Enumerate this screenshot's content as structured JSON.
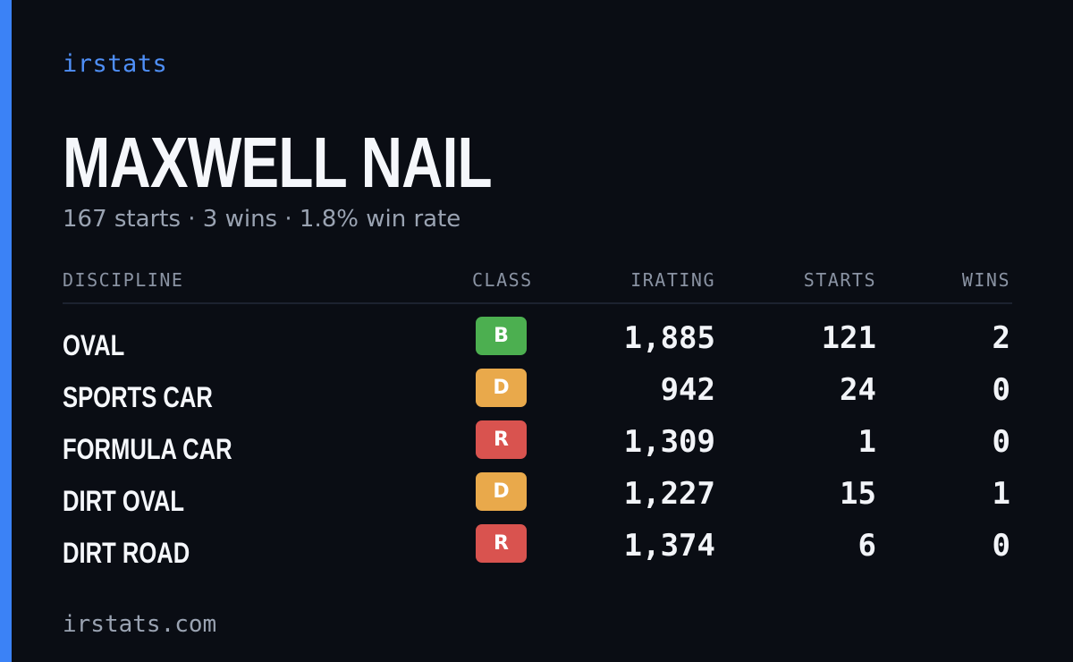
{
  "brand": "irstats",
  "driver": {
    "name": "MAXWELL NAIL",
    "summary": "167 starts · 3 wins · 1.8% win rate"
  },
  "table": {
    "headers": {
      "discipline": "DISCIPLINE",
      "class": "CLASS",
      "irating": "IRATING",
      "starts": "STARTS",
      "wins": "WINS"
    },
    "rows": [
      {
        "discipline": "OVAL",
        "class": "B",
        "class_color": "#4caf50",
        "irating": "1,885",
        "starts": "121",
        "wins": "2"
      },
      {
        "discipline": "SPORTS CAR",
        "class": "D",
        "class_color": "#e9a94b",
        "irating": "942",
        "starts": "24",
        "wins": "0"
      },
      {
        "discipline": "FORMULA CAR",
        "class": "R",
        "class_color": "#d9534f",
        "irating": "1,309",
        "starts": "1",
        "wins": "0"
      },
      {
        "discipline": "DIRT OVAL",
        "class": "D",
        "class_color": "#e9a94b",
        "irating": "1,227",
        "starts": "15",
        "wins": "1"
      },
      {
        "discipline": "DIRT ROAD",
        "class": "R",
        "class_color": "#d9534f",
        "irating": "1,374",
        "starts": "6",
        "wins": "0"
      }
    ]
  },
  "footer": "irstats.com",
  "colors": {
    "accent": "#3b82f6",
    "background": "#0a0d14"
  }
}
